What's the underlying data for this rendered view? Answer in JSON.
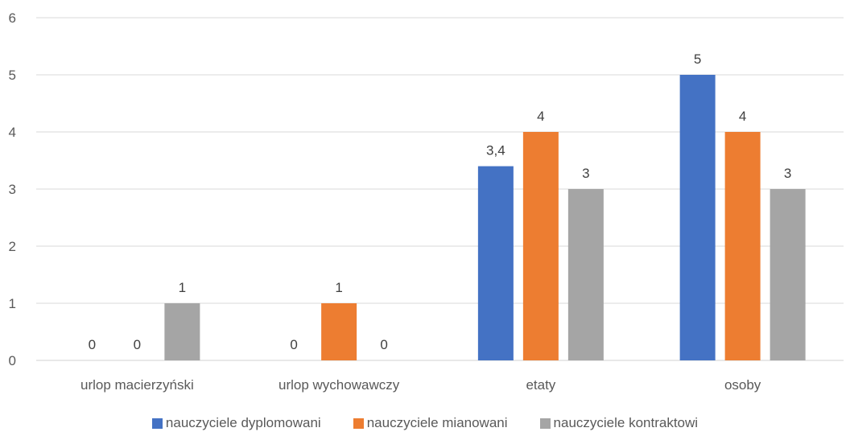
{
  "chart_data": {
    "type": "bar",
    "categories": [
      "urlop macierzyński",
      "urlop wychowawczy",
      "etaty",
      "osoby"
    ],
    "series": [
      {
        "name": "nauczyciele dyplomowani",
        "color": "#4472C4",
        "values": [
          0,
          0,
          3.4,
          5
        ],
        "labels": [
          "0",
          "0",
          "3,4",
          "5"
        ]
      },
      {
        "name": "nauczyciele mianowani",
        "color": "#ED7D31",
        "values": [
          0,
          1,
          4,
          4
        ],
        "labels": [
          "0",
          "1",
          "4",
          "4"
        ]
      },
      {
        "name": "nauczyciele kontraktowi",
        "color": "#A5A5A5",
        "values": [
          1,
          0,
          3,
          3
        ],
        "labels": [
          "1",
          "0",
          "3",
          "3"
        ]
      }
    ],
    "ylim": [
      0,
      6
    ],
    "yticks": [
      "0",
      "1",
      "2",
      "3",
      "4",
      "5",
      "6"
    ],
    "grid": true,
    "legend": "bottom"
  }
}
